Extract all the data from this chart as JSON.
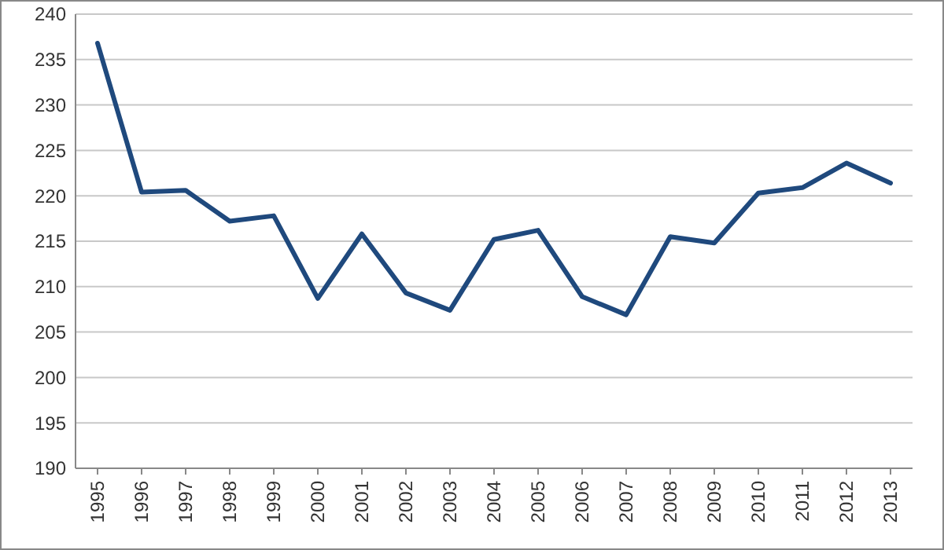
{
  "chart_data": {
    "type": "line",
    "categories": [
      "1995",
      "1996",
      "1997",
      "1998",
      "1999",
      "2000",
      "2001",
      "2002",
      "2003",
      "2004",
      "2005",
      "2006",
      "2007",
      "2008",
      "2009",
      "2010",
      "2011",
      "2012",
      "2013"
    ],
    "series": [
      {
        "color": "#1f497d",
        "values": [
          236.8,
          220.4,
          220.6,
          217.2,
          217.8,
          208.7,
          215.8,
          209.3,
          207.4,
          215.2,
          216.2,
          208.9,
          206.9,
          215.5,
          214.8,
          220.3,
          220.9,
          223.6,
          221.4
        ]
      }
    ],
    "ylim": [
      190,
      240
    ],
    "yticks": [
      190,
      195,
      200,
      205,
      210,
      215,
      220,
      225,
      230,
      235,
      240
    ],
    "grid": "y",
    "marker": "none",
    "line_style": "solid"
  }
}
